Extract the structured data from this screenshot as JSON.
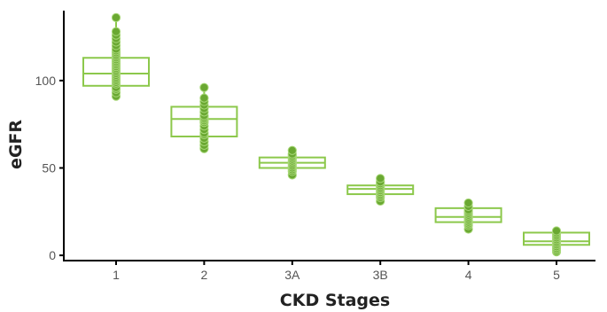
{
  "chart_data": {
    "type": "box",
    "xlabel": "CKD Stages",
    "ylabel": "eGFR",
    "categories": [
      "1",
      "2",
      "3A",
      "3B",
      "4",
      "5"
    ],
    "ylim": [
      -3,
      140
    ],
    "y_ticks": [
      0,
      50,
      100
    ],
    "grid": false,
    "legend": "none",
    "color": "#8cc84b",
    "point_color": "#6aa832",
    "boxes": [
      {
        "category": "1",
        "q1": 97,
        "median": 104,
        "q3": 113,
        "min": 91,
        "max": 136,
        "points": [
          91,
          93,
          95,
          96,
          98,
          99,
          100,
          101,
          102,
          103,
          104,
          105,
          106,
          107,
          108,
          109,
          110,
          111,
          112,
          113,
          114,
          115,
          116,
          117,
          118,
          120,
          122,
          124,
          126,
          128,
          136
        ]
      },
      {
        "category": "2",
        "q1": 68,
        "median": 78,
        "q3": 85,
        "min": 61,
        "max": 96,
        "points": [
          61,
          63,
          65,
          67,
          69,
          70,
          72,
          74,
          76,
          77,
          78,
          79,
          80,
          82,
          84,
          86,
          88,
          90,
          96
        ]
      },
      {
        "category": "3A",
        "q1": 50,
        "median": 53,
        "q3": 56,
        "min": 46,
        "max": 60,
        "points": [
          46,
          48,
          49,
          50,
          51,
          52,
          53,
          54,
          55,
          56,
          57,
          58,
          60
        ]
      },
      {
        "category": "3B",
        "q1": 35,
        "median": 38,
        "q3": 40,
        "min": 31,
        "max": 44,
        "points": [
          31,
          33,
          34,
          35,
          36,
          37,
          38,
          39,
          40,
          41,
          42,
          44
        ]
      },
      {
        "category": "4",
        "q1": 19,
        "median": 22,
        "q3": 27,
        "min": 15,
        "max": 30,
        "points": [
          15,
          17,
          18,
          19,
          20,
          21,
          22,
          23,
          24,
          25,
          26,
          28,
          30
        ]
      },
      {
        "category": "5",
        "q1": 6,
        "median": 8,
        "q3": 13,
        "min": 2,
        "max": 14,
        "points": [
          2,
          3,
          4,
          5,
          6,
          7,
          8,
          9,
          10,
          11,
          12,
          13,
          14
        ]
      }
    ]
  }
}
